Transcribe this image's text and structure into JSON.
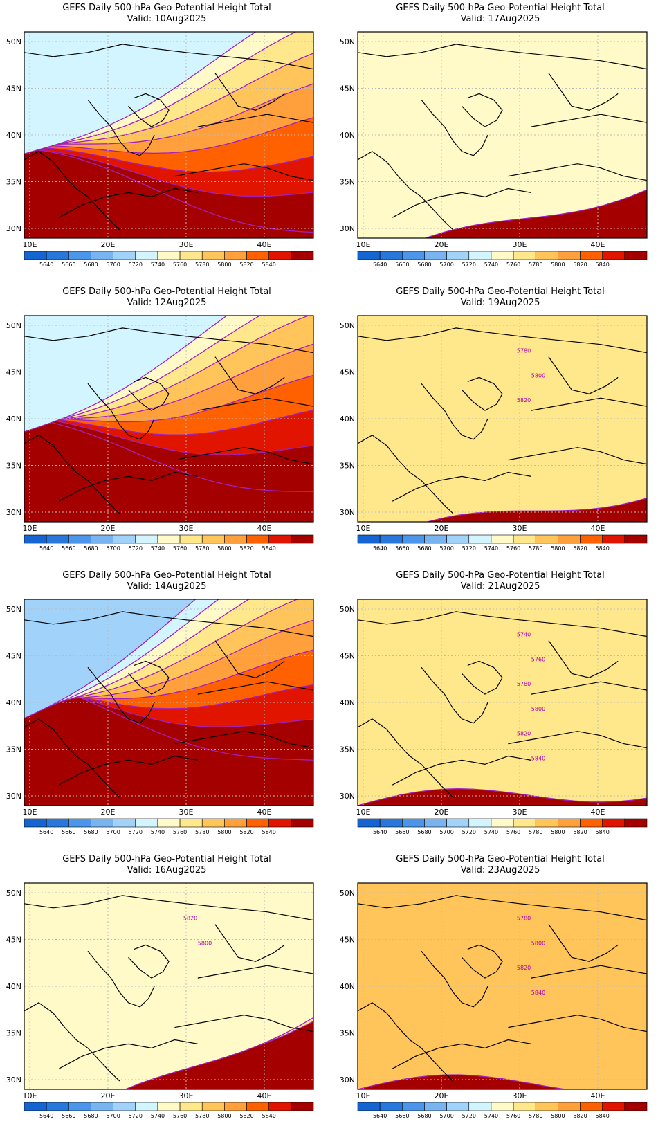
{
  "colors": {
    "levels": [
      "#1464d2",
      "#2878dc",
      "#4b96eb",
      "#78b4f0",
      "#a0d2fa",
      "#d2f5ff",
      "#fffac8",
      "#ffe88c",
      "#ffc45a",
      "#ffa03c",
      "#ff6000",
      "#e11400",
      "#a50000"
    ],
    "contour": "#a020c0",
    "coast": "#000000",
    "grid": "#bbbbbb"
  },
  "axes": {
    "lon_ticks": [
      "10E",
      "20E",
      "30E",
      "40E"
    ],
    "lat_ticks": [
      "50N",
      "45N",
      "40N",
      "35N",
      "30N"
    ]
  },
  "colorbar": {
    "labels": [
      "5640",
      "5660",
      "5680",
      "5700",
      "5720",
      "5740",
      "5760",
      "5780",
      "5800",
      "5820",
      "5840"
    ]
  },
  "panels": [
    {
      "title": "GEFS Daily 500-hPa Geo-Potential Height Total",
      "valid": "Valid: 10Aug2025",
      "bands": [
        [
          0.22,
          0.34,
          12
        ],
        [
          0.3,
          0.15,
          11
        ],
        [
          0.38,
          0.0,
          10
        ],
        [
          0.47,
          -0.16,
          9
        ],
        [
          0.55,
          -0.3,
          8
        ],
        [
          0.62,
          -0.44,
          7
        ],
        [
          0.69,
          -0.58,
          6
        ],
        [
          0.75,
          -0.7,
          5
        ]
      ],
      "labels": []
    },
    {
      "title": "GEFS Daily 500-hPa Geo-Potential Height Total",
      "valid": "Valid: 17Aug2025",
      "bands": [
        [
          0.95,
          0.2,
          12
        ],
        [
          0.78,
          0.1,
          11
        ],
        [
          0.62,
          0.0,
          10
        ],
        [
          0.46,
          -0.1,
          9
        ],
        [
          0.3,
          -0.2,
          8
        ],
        [
          0.16,
          -0.35,
          7
        ],
        [
          0.06,
          -0.45,
          6
        ]
      ],
      "labels": []
    },
    {
      "title": "GEFS Daily 500-hPa Geo-Potential Height Total",
      "valid": "Valid: 12Aug2025",
      "bands": [
        [
          0.3,
          0.3,
          12
        ],
        [
          0.4,
          0.1,
          11
        ],
        [
          0.48,
          -0.05,
          10
        ],
        [
          0.56,
          -0.2,
          9
        ],
        [
          0.63,
          -0.35,
          8
        ],
        [
          0.7,
          -0.5,
          7
        ],
        [
          0.76,
          -0.62,
          6
        ],
        [
          0.82,
          -0.75,
          5
        ]
      ],
      "labels": []
    },
    {
      "title": "GEFS Daily 500-hPa Geo-Potential Height Total",
      "valid": "Valid: 19Aug2025",
      "bands": [
        [
          0.78,
          0.2,
          12
        ],
        [
          0.63,
          0.1,
          11
        ],
        [
          0.47,
          0.0,
          10
        ],
        [
          0.27,
          -0.1,
          9
        ],
        [
          0.1,
          -0.2,
          8
        ],
        [
          0.02,
          -0.3,
          7
        ]
      ],
      "labels": [
        "5780",
        "5800",
        "5820"
      ]
    },
    {
      "title": "GEFS Daily 500-hPa Geo-Potential Height Total",
      "valid": "Valid: 14Aug2025",
      "bands": [
        [
          0.38,
          0.35,
          12
        ],
        [
          0.46,
          0.15,
          11
        ],
        [
          0.53,
          -0.02,
          10
        ],
        [
          0.6,
          -0.2,
          9
        ],
        [
          0.66,
          -0.36,
          8
        ],
        [
          0.72,
          -0.5,
          7
        ],
        [
          0.78,
          -0.65,
          6
        ],
        [
          0.84,
          -0.78,
          5
        ],
        [
          0.9,
          -0.9,
          4
        ]
      ],
      "labels": []
    },
    {
      "title": "GEFS Daily 500-hPa Geo-Potential Height Total",
      "valid": "Valid: 21Aug2025",
      "bands": [
        [
          0.64,
          0.15,
          12
        ],
        [
          0.5,
          0.1,
          11
        ],
        [
          0.37,
          0.05,
          10
        ],
        [
          0.24,
          0.0,
          9
        ],
        [
          0.12,
          -0.05,
          8
        ],
        [
          0.04,
          -0.1,
          7
        ]
      ],
      "labels": [
        "5740",
        "5760",
        "5780",
        "5800",
        "5820",
        "5840"
      ]
    },
    {
      "title": "GEFS Daily 500-hPa Geo-Potential Height Total",
      "valid": "Valid: 16Aug2025",
      "bands": [
        [
          0.8,
          0.4,
          12
        ],
        [
          0.6,
          0.2,
          11
        ],
        [
          0.45,
          0.0,
          10
        ],
        [
          0.3,
          -0.2,
          9
        ],
        [
          0.18,
          -0.4,
          8
        ],
        [
          0.1,
          -0.55,
          7
        ],
        [
          0.05,
          -0.7,
          6
        ]
      ],
      "labels": [
        "5820",
        "5800"
      ]
    },
    {
      "title": "GEFS Daily 500-hPa Geo-Potential Height Total",
      "valid": "Valid: 23Aug2025",
      "bands": [
        [
          0.5,
          0.05,
          12
        ],
        [
          0.36,
          0.02,
          11
        ],
        [
          0.2,
          0.0,
          10
        ],
        [
          0.08,
          -0.02,
          9
        ],
        [
          0.02,
          -0.05,
          8
        ]
      ],
      "labels": [
        "5780",
        "5800",
        "5820",
        "5840"
      ]
    }
  ]
}
